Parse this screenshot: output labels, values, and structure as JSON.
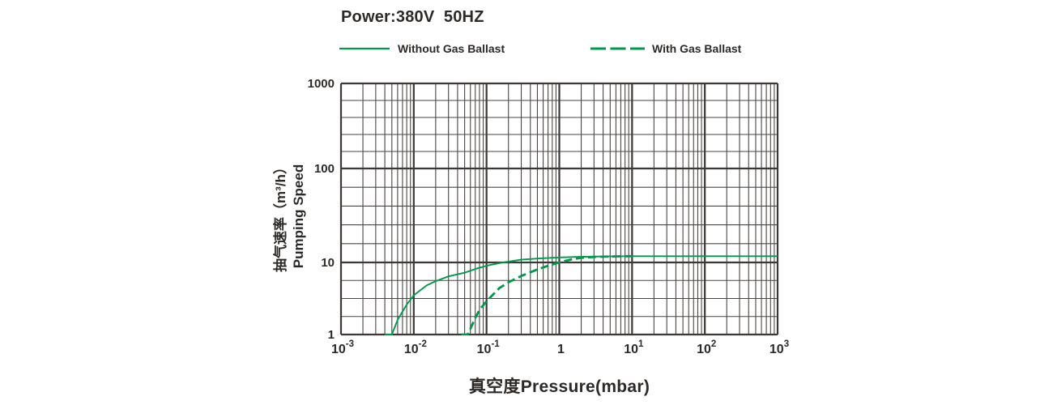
{
  "title": "Power:380V  50HZ",
  "legend": {
    "without": {
      "label": "Without Gas Ballast",
      "style": "solid"
    },
    "with": {
      "label": "With Gas Ballast",
      "style": "dashed"
    }
  },
  "colors": {
    "line": "#00994a",
    "grid_major": "#3d3835",
    "grid_minor": "#4a4542",
    "text": "#2d2926"
  },
  "axis_titles": {
    "x": "真空度Pressure(mbar)",
    "y_line1": "抽气速率（m³/h）",
    "y_line2": "Pumping Speed"
  },
  "chart_data": {
    "type": "line",
    "title": "Power:380V  50HZ",
    "xlabel": "真空度Pressure(mbar)",
    "ylabel": "抽气速率（m³/h） Pumping Speed",
    "xscale": "log",
    "yscale": "log",
    "xlim": [
      0.001,
      1000
    ],
    "ylim": [
      1,
      1000
    ],
    "grid": true,
    "legend_position": "top",
    "xticks": [
      {
        "base": "10",
        "exp": "-3"
      },
      {
        "base": "10",
        "exp": "-2"
      },
      {
        "base": "10",
        "exp": "-1"
      },
      {
        "base": "1",
        "exp": ""
      },
      {
        "base": "10",
        "exp": "1"
      },
      {
        "base": "10",
        "exp": "2"
      },
      {
        "base": "10",
        "exp": "3"
      }
    ],
    "yticks": [
      "1000",
      "100",
      "10",
      "1"
    ],
    "series": [
      {
        "name": "Without Gas Ballast",
        "dash": false,
        "points": [
          [
            0.004,
            0.55
          ],
          [
            0.005,
            1.0
          ],
          [
            0.006,
            1.6
          ],
          [
            0.008,
            2.6
          ],
          [
            0.01,
            3.5
          ],
          [
            0.015,
            4.8
          ],
          [
            0.02,
            5.5
          ],
          [
            0.03,
            6.4
          ],
          [
            0.05,
            7.2
          ],
          [
            0.07,
            8.1
          ],
          [
            0.1,
            9.0
          ],
          [
            0.15,
            9.8
          ],
          [
            0.2,
            10.2
          ],
          [
            0.3,
            10.7
          ],
          [
            0.5,
            11.0
          ],
          [
            1,
            11.3
          ],
          [
            2,
            11.5
          ],
          [
            5,
            11.6
          ],
          [
            10,
            11.65
          ],
          [
            100,
            11.65
          ],
          [
            1000,
            11.65
          ]
        ]
      },
      {
        "name": "With Gas Ballast",
        "dash": true,
        "points": [
          [
            0.045,
            0.55
          ],
          [
            0.055,
            0.9
          ],
          [
            0.06,
            1.2
          ],
          [
            0.07,
            1.7
          ],
          [
            0.08,
            2.2
          ],
          [
            0.1,
            2.9
          ],
          [
            0.15,
            4.4
          ],
          [
            0.2,
            5.3
          ],
          [
            0.3,
            6.5
          ],
          [
            0.5,
            8.0
          ],
          [
            0.7,
            9.0
          ],
          [
            1,
            10.0
          ],
          [
            1.5,
            10.8
          ],
          [
            2,
            11.2
          ],
          [
            3,
            11.45
          ],
          [
            5,
            11.55
          ],
          [
            8,
            11.65
          ],
          [
            10,
            11.65
          ]
        ]
      }
    ]
  }
}
